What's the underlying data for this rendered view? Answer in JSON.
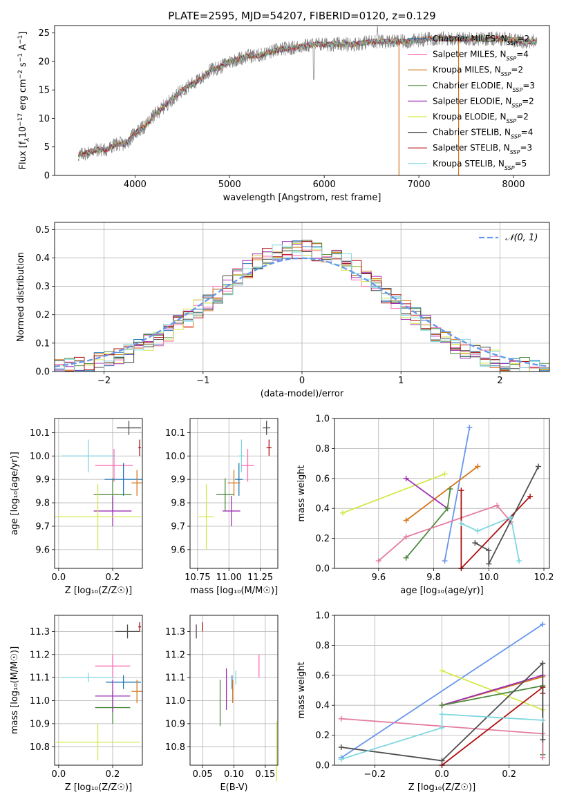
{
  "chart_data": [
    {
      "id": "spectrum",
      "type": "line",
      "title": "PLATE=2595, MJD=54207, FIBERID=0120, z=0.129",
      "xlabel": "wavelength [Angstrom, rest frame]",
      "ylabel_parts": [
        "Flux [f",
        "λ",
        "10",
        "−17",
        " erg cm",
        "−2",
        " s",
        "−1",
        " A",
        "−1",
        "]"
      ],
      "xlim": [
        3150,
        8380
      ],
      "ylim": [
        0,
        26.3
      ],
      "xticks": [
        4000,
        5000,
        6000,
        7000,
        8000
      ],
      "yticks": [
        0,
        5,
        10,
        15,
        20,
        25
      ],
      "series": [
        {
          "name": "Chabrier MILES",
          "nssp": "2",
          "color": "#1f77b4"
        },
        {
          "name": "Salpeter MILES",
          "nssp": "4",
          "color": "#ff69b4"
        },
        {
          "name": "Kroupa MILES",
          "nssp": "2",
          "color": "#d5761b"
        },
        {
          "name": "Chabrier ELODIE",
          "nssp": "3",
          "color": "#4f8a3f"
        },
        {
          "name": "Salpeter ELODIE",
          "nssp": "2",
          "color": "#9d2fb5"
        },
        {
          "name": "Kroupa ELODIE",
          "nssp": "2",
          "color": "#d6e74a"
        },
        {
          "name": "Chabrier STELIB",
          "nssp": "4",
          "color": "#444444"
        },
        {
          "name": "Salpeter STELIB",
          "nssp": "3",
          "color": "#b01010"
        },
        {
          "name": "Kroupa STELIB",
          "nssp": "5",
          "color": "#7fd6e0"
        }
      ],
      "continuum": {
        "wavelength": [
          3400,
          3600,
          3700,
          3800,
          3900,
          4000,
          4100,
          4200,
          4300,
          4500,
          4700,
          4800,
          4900,
          5000,
          5100,
          5200,
          5300,
          5500,
          5700,
          5900,
          6100,
          6300,
          6500,
          6700,
          6900,
          7100,
          7300,
          7500,
          7700,
          7900,
          8100
        ],
        "flux": [
          3.5,
          4.5,
          4.5,
          5.5,
          5.5,
          7.5,
          8.5,
          10.5,
          12,
          15,
          17,
          18.5,
          19,
          20,
          20.5,
          21,
          21,
          22,
          22.5,
          23,
          23,
          23,
          23.5,
          23.5,
          23.5,
          24,
          24,
          24,
          24,
          24,
          23.5
        ]
      },
      "data_series": {
        "name": "data",
        "color": "#808080"
      },
      "drops": [
        {
          "series": "Kroupa MILES",
          "x": 6790
        },
        {
          "series": "Kroupa MILES",
          "x": 7420
        }
      ]
    },
    {
      "id": "residuals",
      "type": "histogram",
      "xlabel": "(data-model)/error",
      "ylabel": "Normed distribution",
      "xlim": [
        -2.5,
        2.5
      ],
      "ylim": [
        0,
        0.525
      ],
      "xticks": [
        -2,
        -1,
        0,
        1,
        2
      ],
      "yticks": [
        0.0,
        0.1,
        0.2,
        0.3,
        0.4,
        0.5
      ],
      "reference": {
        "label": "𝒩(0, 1)",
        "mu": 0,
        "sigma": 1,
        "color": "#6495ed"
      },
      "bin_width": 0.1
    },
    {
      "id": "age-vs-Z",
      "type": "errorbar",
      "xlabel": "Z [log₁₀(Z/Z☉)]",
      "ylabel": "age  [log₁₀(age/yr)]",
      "xlim": [
        -0.015,
        0.31
      ],
      "ylim": [
        9.52,
        10.16
      ],
      "xticks": [
        0.0,
        0.2
      ],
      "yticks": [
        9.6,
        9.7,
        9.8,
        9.9,
        10.0,
        10.1
      ],
      "points": [
        {
          "color": "#4f4f4f",
          "x": 0.26,
          "xerr": 0.045,
          "y": 10.12,
          "yerr": 0.03
        },
        {
          "color": "#b01010",
          "x": 0.3,
          "xerr": 0.005,
          "y": 10.035,
          "yerr": 0.035
        },
        {
          "color": "#7fd6e0",
          "x": 0.11,
          "xerr": 0.1,
          "y": 10.0,
          "yerr": 0.07
        },
        {
          "color": "#ff69b4",
          "x": 0.205,
          "xerr": 0.07,
          "y": 9.96,
          "yerr": 0.07
        },
        {
          "color": "#1f77b4",
          "x": 0.24,
          "xerr": 0.07,
          "y": 9.9,
          "yerr": 0.07
        },
        {
          "color": "#d5761b",
          "x": 0.29,
          "xerr": 0.02,
          "y": 9.885,
          "yerr": 0.055
        },
        {
          "color": "#4f8a3f",
          "x": 0.2,
          "xerr": 0.07,
          "y": 9.835,
          "yerr": 0.07
        },
        {
          "color": "#9d2fb5",
          "x": 0.2,
          "xerr": 0.07,
          "y": 9.765,
          "yerr": 0.065
        },
        {
          "color": "#d6e74a",
          "x": 0.145,
          "xerr": 0.16,
          "y": 9.74,
          "yerr": 0.14
        }
      ]
    },
    {
      "id": "age-vs-mass",
      "type": "errorbar",
      "xlabel": "mass [log₁₀(M/M☉)]",
      "xlim": [
        10.69,
        11.39
      ],
      "ylim": [
        9.52,
        10.16
      ],
      "xticks": [
        10.75,
        11.0,
        11.25
      ],
      "yticks": [
        9.6,
        9.7,
        9.8,
        9.9,
        10.0,
        10.1
      ],
      "points": [
        {
          "color": "#4f4f4f",
          "x": 11.3,
          "xerr": 0.03,
          "y": 10.12,
          "yerr": 0.03
        },
        {
          "color": "#b01010",
          "x": 11.32,
          "xerr": 0.02,
          "y": 10.035,
          "yerr": 0.035
        },
        {
          "color": "#7fd6e0",
          "x": 11.1,
          "xerr": 0.02,
          "y": 10.0,
          "yerr": 0.07
        },
        {
          "color": "#ff69b4",
          "x": 11.15,
          "xerr": 0.05,
          "y": 9.96,
          "yerr": 0.07
        },
        {
          "color": "#1f77b4",
          "x": 11.08,
          "xerr": 0.03,
          "y": 9.9,
          "yerr": 0.07
        },
        {
          "color": "#d5761b",
          "x": 11.04,
          "xerr": 0.05,
          "y": 9.885,
          "yerr": 0.055
        },
        {
          "color": "#4f8a3f",
          "x": 10.97,
          "xerr": 0.07,
          "y": 9.835,
          "yerr": 0.07
        },
        {
          "color": "#9d2fb5",
          "x": 11.02,
          "xerr": 0.07,
          "y": 9.765,
          "yerr": 0.065
        },
        {
          "color": "#d6e74a",
          "x": 10.82,
          "xerr": 0.06,
          "y": 9.74,
          "yerr": 0.14
        }
      ]
    },
    {
      "id": "weight-vs-age",
      "type": "line",
      "xlabel": "age  [log₁₀(age/yr)]",
      "ylabel": "mass weight",
      "xlim": [
        9.44,
        10.22
      ],
      "ylim": [
        0,
        1.0
      ],
      "xticks": [
        9.6,
        9.8,
        10.0,
        10.2
      ],
      "yticks": [
        0.0,
        0.2,
        0.4,
        0.6,
        0.8,
        1.0
      ],
      "series": [
        {
          "color": "#6495ed",
          "x": [
            9.84,
            9.93
          ],
          "y": [
            0.05,
            0.94
          ]
        },
        {
          "color": "#d6e74a",
          "x": [
            9.47,
            9.84
          ],
          "y": [
            0.37,
            0.63
          ]
        },
        {
          "color": "#d5761b",
          "x": [
            9.7,
            9.96
          ],
          "y": [
            0.32,
            0.68
          ]
        },
        {
          "color": "#9d2fb5",
          "x": [
            9.7,
            9.85
          ],
          "y": [
            0.6,
            0.4
          ]
        },
        {
          "color": "#4f8a3f",
          "x": [
            9.7,
            9.85,
            9.86
          ],
          "y": [
            0.07,
            0.4,
            0.53
          ]
        },
        {
          "color": "#e37ba0",
          "x": [
            9.6,
            9.7,
            10.03,
            10.08
          ],
          "y": [
            0.05,
            0.21,
            0.42,
            0.31
          ]
        },
        {
          "color": "#b01010",
          "x": [
            9.9,
            9.9,
            10.15
          ],
          "y": [
            0.52,
            0.0,
            0.48
          ]
        },
        {
          "color": "#4f4f4f",
          "x": [
            9.95,
            10.0,
            10.0,
            10.18
          ],
          "y": [
            0.17,
            0.12,
            0.03,
            0.68
          ]
        },
        {
          "color": "#7fd6e0",
          "x": [
            9.9,
            9.96,
            10.08,
            10.11
          ],
          "y": [
            0.3,
            0.25,
            0.34,
            0.05
          ]
        }
      ]
    },
    {
      "id": "mass-vs-Z",
      "type": "errorbar",
      "xlabel": "Z [log₁₀(Z/Z☉)]",
      "ylabel": "mass [log₁₀(M/M☉)]",
      "xlim": [
        -0.015,
        0.31
      ],
      "ylim": [
        10.72,
        11.37
      ],
      "xticks": [
        0.0,
        0.2
      ],
      "yticks": [
        10.8,
        10.9,
        11.0,
        11.1,
        11.2,
        11.3
      ],
      "points": [
        {
          "color": "#4f4f4f",
          "x": 0.255,
          "xerr": 0.045,
          "y": 11.3,
          "yerr": 0.03
        },
        {
          "color": "#b01010",
          "x": 0.3,
          "xerr": 0.005,
          "y": 11.32,
          "yerr": 0.02
        },
        {
          "color": "#7fd6e0",
          "x": 0.11,
          "xerr": 0.1,
          "y": 11.1,
          "yerr": 0.02
        },
        {
          "color": "#ff69b4",
          "x": 0.2,
          "xerr": 0.065,
          "y": 11.15,
          "yerr": 0.05
        },
        {
          "color": "#1f77b4",
          "x": 0.24,
          "xerr": 0.065,
          "y": 11.08,
          "yerr": 0.03
        },
        {
          "color": "#d5761b",
          "x": 0.29,
          "xerr": 0.02,
          "y": 11.04,
          "yerr": 0.05
        },
        {
          "color": "#4f8a3f",
          "x": 0.2,
          "xerr": 0.065,
          "y": 10.97,
          "yerr": 0.07
        },
        {
          "color": "#9d2fb5",
          "x": 0.2,
          "xerr": 0.065,
          "y": 11.02,
          "yerr": 0.07
        },
        {
          "color": "#d6e74a",
          "x": 0.145,
          "xerr": 0.155,
          "y": 10.82,
          "yerr": 0.08
        }
      ]
    },
    {
      "id": "mass-vs-ebv",
      "type": "errorbar",
      "xlabel": "E(B-V)",
      "xlim": [
        0.03,
        0.17
      ],
      "ylim": [
        10.72,
        11.37
      ],
      "xticks": [
        0.05,
        0.1,
        0.15
      ],
      "yticks": [
        10.8,
        10.9,
        11.0,
        11.1,
        11.2,
        11.3
      ],
      "points": [
        {
          "color": "#4f4f4f",
          "x": 0.04,
          "y": 11.3,
          "yerr": 0.03
        },
        {
          "color": "#b01010",
          "x": 0.05,
          "y": 11.32,
          "yerr": 0.02
        },
        {
          "color": "#7fd6e0",
          "x": 0.103,
          "y": 11.1,
          "yerr": 0.03
        },
        {
          "color": "#ff69b4",
          "x": 0.14,
          "y": 11.15,
          "yerr": 0.05
        },
        {
          "color": "#1f77b4",
          "x": 0.097,
          "y": 11.08,
          "yerr": 0.03
        },
        {
          "color": "#d5761b",
          "x": 0.098,
          "y": 11.04,
          "yerr": 0.05
        },
        {
          "color": "#4f8a3f",
          "x": 0.078,
          "y": 10.99,
          "yerr": 0.1
        },
        {
          "color": "#9d2fb5",
          "x": 0.088,
          "y": 11.05,
          "yerr": 0.09
        },
        {
          "color": "#d6e74a",
          "x": 0.168,
          "y": 10.78,
          "yerr": 0.13
        }
      ]
    },
    {
      "id": "weight-vs-Z",
      "type": "line",
      "xlabel": "Z [log₁₀(Z/Z☉)]",
      "ylabel": "mass weight",
      "xlim": [
        -0.32,
        0.32
      ],
      "ylim": [
        0,
        1.0
      ],
      "xticks": [
        -0.2,
        0.0,
        0.2
      ],
      "yticks": [
        0.0,
        0.2,
        0.4,
        0.6,
        0.8,
        1.0
      ],
      "series": [
        {
          "color": "#6495ed",
          "x": [
            -0.3,
            0.3
          ],
          "y": [
            0.05,
            0.94
          ]
        },
        {
          "color": "#d6e74a",
          "x": [
            0.0,
            0.3
          ],
          "y": [
            0.63,
            0.37
          ]
        },
        {
          "color": "#d5761b",
          "x": [
            0.0,
            0.3
          ],
          "y": [
            0.4,
            0.59
          ]
        },
        {
          "color": "#9d2fb5",
          "x": [
            0.0,
            0.3
          ],
          "y": [
            0.4,
            0.6
          ]
        },
        {
          "color": "#4f8a3f",
          "x": [
            0.0,
            0.3,
            0.3
          ],
          "y": [
            0.4,
            0.53,
            0.07
          ]
        },
        {
          "color": "#e37ba0",
          "x": [
            -0.3,
            0.3,
            0.3
          ],
          "y": [
            0.31,
            0.21,
            0.05
          ]
        },
        {
          "color": "#b01010",
          "x": [
            0.0,
            0.3,
            0.3
          ],
          "y": [
            0.0,
            0.52,
            0.48
          ]
        },
        {
          "color": "#4f4f4f",
          "x": [
            -0.3,
            0.0,
            0.3,
            0.3
          ],
          "y": [
            0.12,
            0.03,
            0.68,
            0.17
          ]
        },
        {
          "color": "#7fd6e0",
          "x": [
            -0.3,
            0.0,
            0.0,
            0.3
          ],
          "y": [
            0.04,
            0.25,
            0.34,
            0.3
          ]
        }
      ]
    }
  ]
}
